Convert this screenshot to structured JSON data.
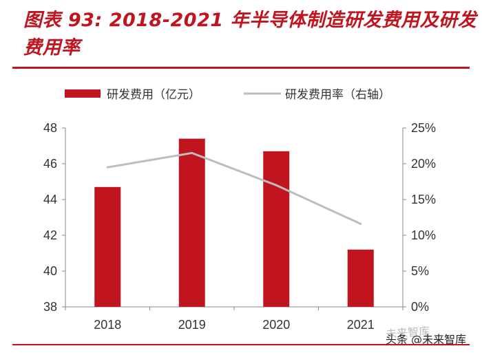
{
  "title": "图表 93: 2018-2021 年半导体制造研发费用及研发费用率",
  "watermark": "未来智库",
  "credit": "头条 @未来智库",
  "colors": {
    "bar": "#c0141f",
    "line": "#bdbdbd",
    "accent": "#c0141f"
  },
  "chart_data": {
    "type": "bar",
    "categories": [
      "2018",
      "2019",
      "2020",
      "2021"
    ],
    "series": [
      {
        "name": "研发费用（亿元）",
        "type": "bar",
        "axis": "left",
        "values": [
          44.7,
          47.4,
          46.7,
          41.2
        ]
      },
      {
        "name": "研发费用率（右轴）",
        "type": "line",
        "axis": "right",
        "values": [
          19.5,
          21.5,
          17.0,
          11.6
        ]
      }
    ],
    "ylim": [
      38,
      48
    ],
    "yticks": [
      "38",
      "40",
      "42",
      "44",
      "46",
      "48"
    ],
    "y2lim": [
      0,
      25
    ],
    "y2ticks": [
      "0%",
      "5%",
      "10%",
      "15%",
      "20%",
      "25%"
    ],
    "legend": "top",
    "grid": false
  }
}
